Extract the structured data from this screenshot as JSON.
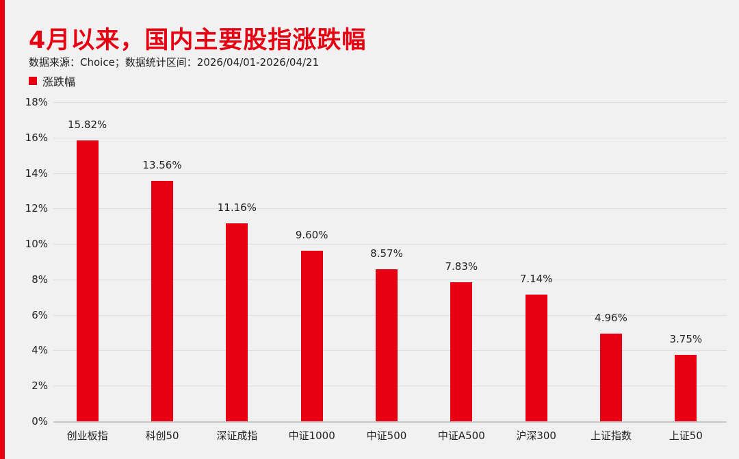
{
  "header": {
    "title": "4月以来，国内主要股指涨跌幅",
    "subtitle": "数据来源：Choice；数据统计区间：2026/04/01-2026/04/21"
  },
  "legend": {
    "label": "涨跌幅",
    "color": "#e60012"
  },
  "colors": {
    "accent": "#e60012",
    "background": "#f1f1f1"
  },
  "chart_data": {
    "type": "bar",
    "title": "4月以来，国内主要股指涨跌幅",
    "subtitle": "数据来源：Choice；数据统计区间：2026/04/01-2026/04/21",
    "xlabel": "",
    "ylabel": "",
    "categories": [
      "创业板指",
      "科创50",
      "深证成指",
      "中证1000",
      "中证500",
      "中证A500",
      "沪深300",
      "上证指数",
      "上证50"
    ],
    "series": [
      {
        "name": "涨跌幅",
        "values": [
          15.82,
          13.56,
          11.16,
          9.6,
          8.57,
          7.83,
          7.14,
          4.96,
          3.75
        ]
      }
    ],
    "value_labels": [
      "15.82%",
      "13.56%",
      "11.16%",
      "9.60%",
      "8.57%",
      "7.83%",
      "7.14%",
      "4.96%",
      "3.75%"
    ],
    "yticks": [
      "0%",
      "2%",
      "4%",
      "6%",
      "8%",
      "10%",
      "12%",
      "14%",
      "16%",
      "18%"
    ],
    "ylim": [
      0,
      18
    ],
    "grid": true,
    "legend_position": "top-left"
  }
}
